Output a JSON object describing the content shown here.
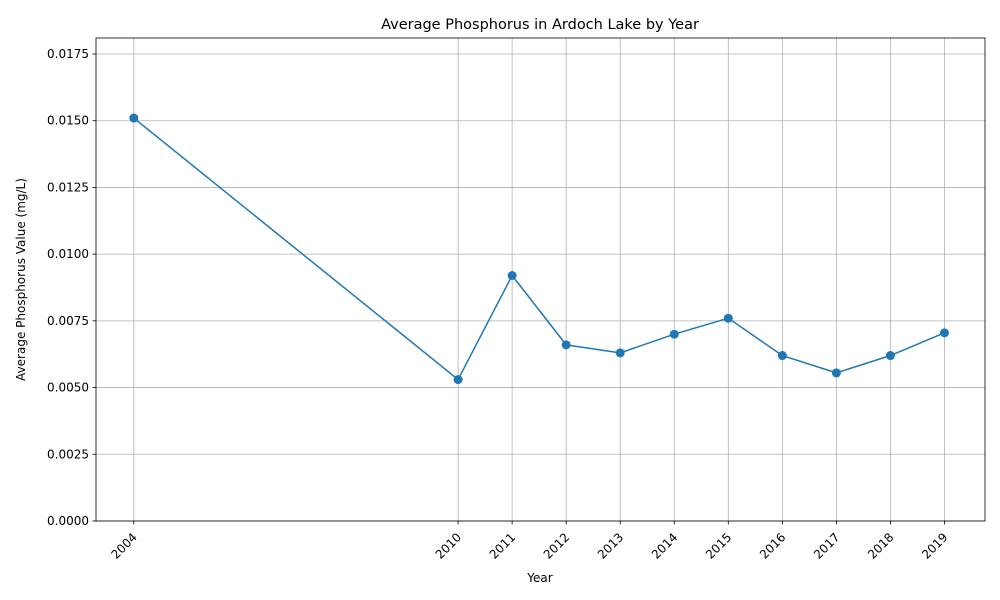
{
  "chart_data": {
    "type": "line",
    "title": "Average Phosphorus in Ardoch Lake by Year",
    "xlabel": "Year",
    "ylabel": "Average Phosphorus Value (mg/L)",
    "x": [
      2004,
      2010,
      2011,
      2012,
      2013,
      2014,
      2015,
      2016,
      2017,
      2018,
      2019
    ],
    "values": [
      0.0151,
      0.0053,
      0.0092,
      0.0066,
      0.0063,
      0.007,
      0.0076,
      0.0062,
      0.00555,
      0.0062,
      0.00705
    ],
    "xlim": [
      2003.3,
      2019.75
    ],
    "ylim": [
      0,
      0.0181
    ],
    "yticks": [
      "0.0000",
      "0.0025",
      "0.0050",
      "0.0075",
      "0.0100",
      "0.0125",
      "0.0150",
      "0.0175"
    ],
    "xticks": [
      "2004",
      "2010",
      "2011",
      "2012",
      "2013",
      "2014",
      "2015",
      "2016",
      "2017",
      "2018",
      "2019"
    ],
    "grid": true,
    "legend": "none",
    "line_color": "#1f77b4",
    "marker": "circle"
  }
}
